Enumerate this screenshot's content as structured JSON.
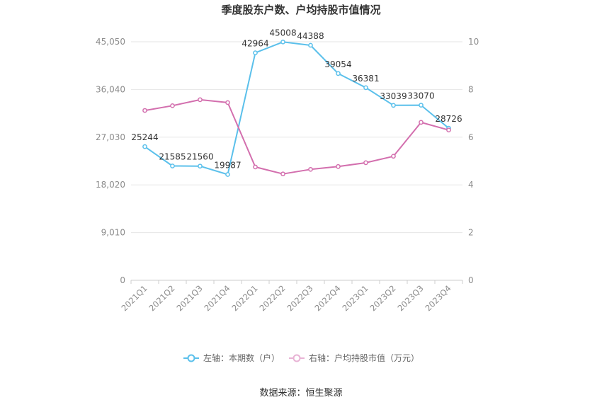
{
  "chart_data": {
    "type": "line",
    "title": "季度股东户数、户均持股市值情况",
    "categories": [
      "2021Q1",
      "2021Q2",
      "2021Q3",
      "2021Q4",
      "2022Q1",
      "2022Q2",
      "2022Q3",
      "2022Q4",
      "2023Q1",
      "2023Q2",
      "2023Q3",
      "2023Q4"
    ],
    "left_axis": {
      "ticks": [
        "0",
        "9,010",
        "18,020",
        "27,030",
        "36,040",
        "45,050"
      ],
      "min": 0,
      "max": 45050
    },
    "right_axis": {
      "ticks": [
        "0",
        "2",
        "4",
        "6",
        "8",
        "10"
      ],
      "min": 0,
      "max": 10
    },
    "series": [
      {
        "name": "左轴：本期数（户）",
        "axis": "left",
        "color": "#5bc0eb",
        "values": [
          25244,
          21585,
          21560,
          19987,
          42964,
          45008,
          44388,
          39054,
          36381,
          33039,
          33070,
          28726
        ],
        "labels": [
          "25244",
          "21585",
          "21560",
          "19987",
          "42964",
          "45008",
          "44388",
          "39054",
          "36381",
          "33039",
          "33070",
          "28726"
        ]
      },
      {
        "name": "右轴：户均持股市值（万元）",
        "axis": "right",
        "color": "#d36fae",
        "values": [
          7.12,
          7.32,
          7.57,
          7.45,
          4.75,
          4.46,
          4.65,
          4.77,
          4.93,
          5.2,
          6.62,
          6.3
        ]
      }
    ],
    "legend_position": "bottom",
    "grid": true
  },
  "source_text": "数据来源：恒生聚源"
}
